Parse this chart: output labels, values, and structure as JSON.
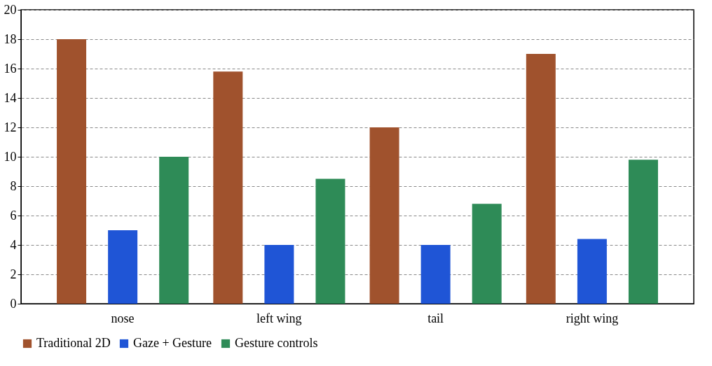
{
  "chart_data": {
    "type": "bar",
    "categories": [
      "nose",
      "left wing",
      "tail",
      "right wing"
    ],
    "series": [
      {
        "name": "Traditional 2D",
        "color": "#a0522d",
        "values": [
          18,
          15.8,
          12,
          17
        ]
      },
      {
        "name": "Gaze + Gesture",
        "color": "#1f55d6",
        "values": [
          5,
          4,
          4,
          4.4
        ]
      },
      {
        "name": "Gesture controls",
        "color": "#2e8b57",
        "values": [
          10,
          8.5,
          6.8,
          9.8
        ]
      }
    ],
    "ylim": [
      0,
      20
    ],
    "yticks": [
      0,
      2,
      4,
      6,
      8,
      10,
      12,
      14,
      16,
      18,
      20
    ],
    "grid": "y",
    "legend": "bottom"
  }
}
